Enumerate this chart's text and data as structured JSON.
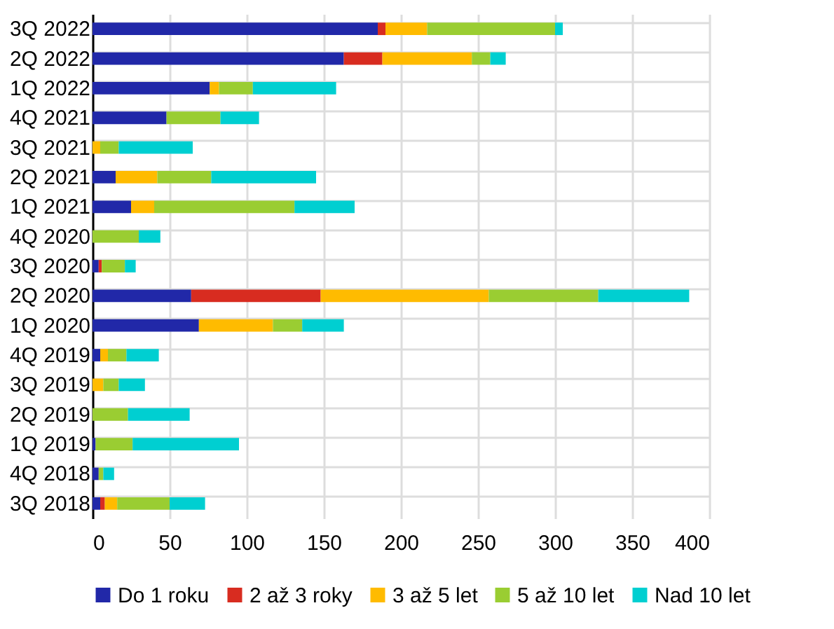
{
  "chart_data": {
    "type": "bar",
    "orientation": "horizontal",
    "stacked": true,
    "categories": [
      "3Q 2022",
      "2Q 2022",
      "1Q 2022",
      "4Q 2021",
      "3Q 2021",
      "2Q 2021",
      "1Q 2021",
      "4Q 2020",
      "3Q 2020",
      "2Q 2020",
      "1Q 2020",
      "4Q 2019",
      "3Q 2019",
      "2Q 2019",
      "1Q 2019",
      "4Q 2018",
      "3Q 2018"
    ],
    "series": [
      {
        "name": "Do 1 roku",
        "color": "#2128a8",
        "values": [
          185,
          163,
          76,
          48,
          0,
          15,
          25,
          0,
          4,
          64,
          69,
          5,
          0,
          0,
          2,
          4,
          5
        ]
      },
      {
        "name": "2 až 3 roky",
        "color": "#d82c20",
        "values": [
          5,
          25,
          0,
          0,
          0,
          0,
          0,
          0,
          2,
          84,
          0,
          0,
          0,
          0,
          0,
          0,
          3
        ]
      },
      {
        "name": "3 až 5 let",
        "color": "#ffbb00",
        "values": [
          27,
          58,
          6,
          0,
          5,
          27,
          15,
          0,
          0,
          109,
          48,
          5,
          7,
          0,
          0,
          0,
          8
        ]
      },
      {
        "name": "5 až 10 let",
        "color": "#9acd32",
        "values": [
          83,
          12,
          22,
          35,
          12,
          35,
          91,
          30,
          15,
          71,
          19,
          12,
          10,
          23,
          24,
          3,
          34
        ]
      },
      {
        "name": "Nad 10 let",
        "color": "#00cfd1",
        "values": [
          5,
          10,
          54,
          25,
          48,
          68,
          39,
          14,
          7,
          59,
          27,
          21,
          17,
          40,
          69,
          7,
          23
        ]
      }
    ],
    "xlim": [
      0,
      400
    ],
    "xticks": [
      0,
      50,
      100,
      150,
      200,
      250,
      300,
      350,
      400
    ],
    "grid": true,
    "legend": "bottom"
  }
}
